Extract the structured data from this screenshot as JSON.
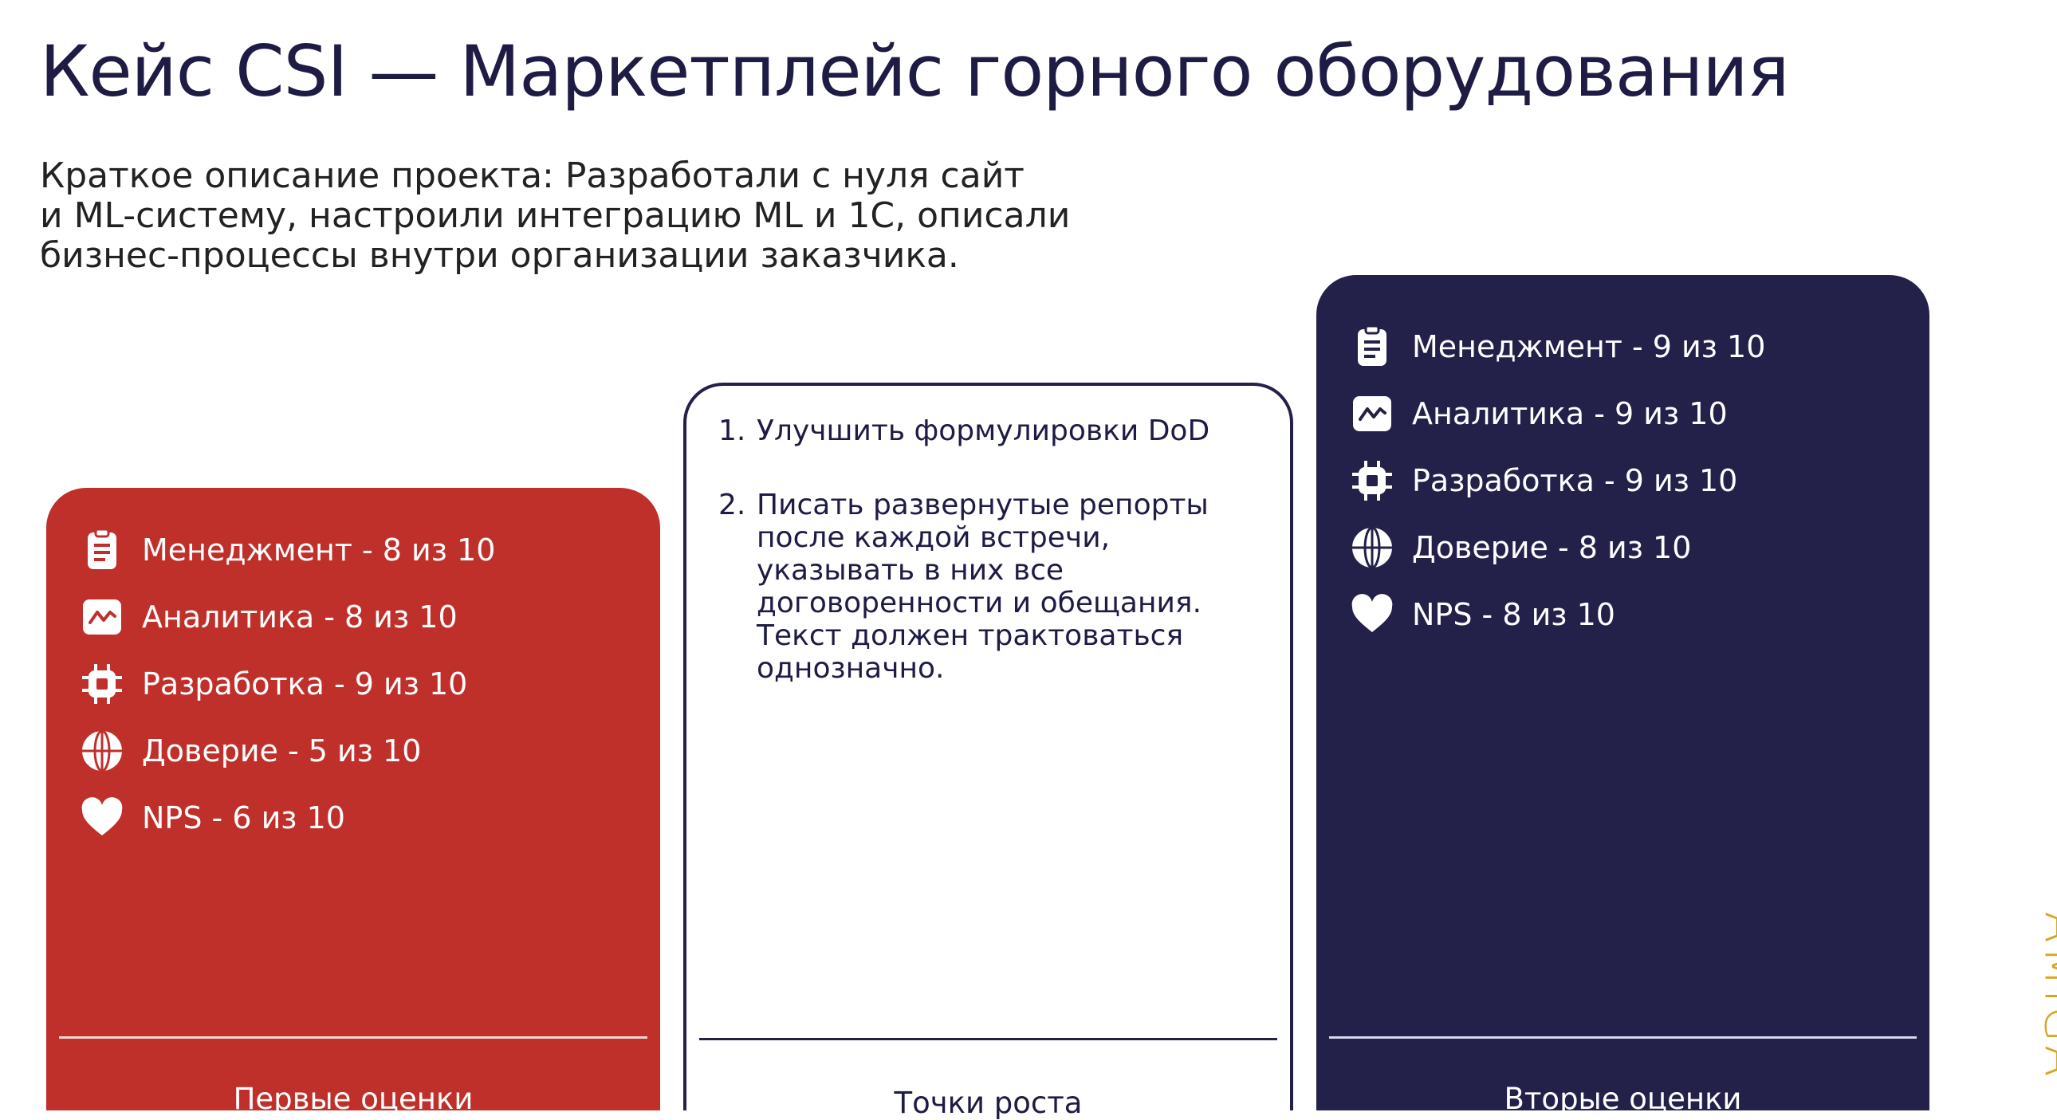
{
  "header": {
    "title": "Кейс CSI — Маркетплейс горного оборудования",
    "description": [
      "Краткое описание проекта: Разработали с нуля сайт",
      "и ML-систему, настроили интеграцию ML и 1С, описали",
      "бизнес-процессы внутри организации заказчика."
    ]
  },
  "cards": [
    {
      "items": [
        "Менеджмент - 8 из 10",
        "Аналитика - 8 из 10",
        "Разработка - 9 из 10",
        "Доверие - 5 из 10",
        "NPS - 6 из 10"
      ],
      "label": "Первые оценки"
    },
    {
      "points": [
        {
          "number": "1.",
          "text": "Улучшить формулировки DoD"
        },
        {
          "number": "2.",
          "text": "Писать развернутые репорты после каждой встречи, указывать в них все договоренности и обещания. Текст должен трактоваться однозначно."
        }
      ],
      "label": "Точки роста"
    },
    {
      "items": [
        "Менеджмент - 9 из 10",
        "Аналитика - 9 из 10",
        "Разработка - 9 из 10",
        "Доверие - 8 из 10",
        "NPS - 8 из 10"
      ],
      "label": "Вторые оценки"
    }
  ],
  "logo": "AMIGA"
}
